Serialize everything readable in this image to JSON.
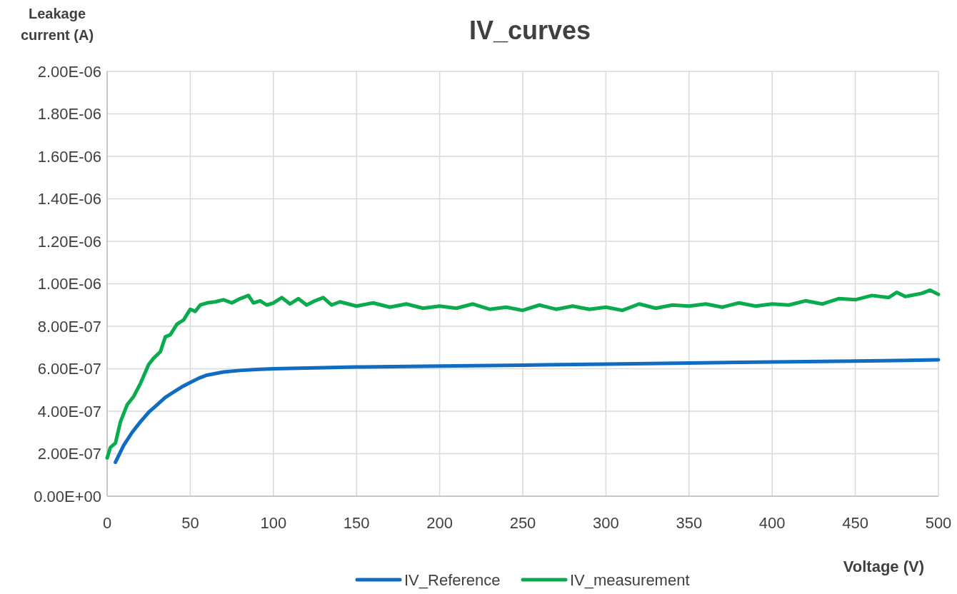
{
  "chart_data": {
    "type": "line",
    "title": "IV_curves",
    "xlabel": "Voltage (V)",
    "ylabel": "Leakage current (A)",
    "xlim": [
      0,
      500
    ],
    "xticks": [
      0,
      50,
      100,
      150,
      200,
      250,
      300,
      350,
      400,
      450,
      500
    ],
    "ylim": [
      0,
      2e-06
    ],
    "yticks": [
      {
        "value": 0,
        "label": "0.00E+00"
      },
      {
        "value": 2e-07,
        "label": "2.00E-07"
      },
      {
        "value": 4e-07,
        "label": "4.00E-07"
      },
      {
        "value": 6e-07,
        "label": "6.00E-07"
      },
      {
        "value": 8e-07,
        "label": "8.00E-07"
      },
      {
        "value": 1e-06,
        "label": "1.00E-06"
      },
      {
        "value": 1.2e-06,
        "label": "1.20E-06"
      },
      {
        "value": 1.4e-06,
        "label": "1.40E-06"
      },
      {
        "value": 1.6e-06,
        "label": "1.60E-06"
      },
      {
        "value": 1.8e-06,
        "label": "1.80E-06"
      },
      {
        "value": 2e-06,
        "label": "2.00E-06"
      }
    ],
    "grid": true,
    "legend": "bottom",
    "marker": "none",
    "line_style": "solid",
    "series": [
      {
        "name": "IV_Reference",
        "color": "#0f6cc0",
        "x": [
          5,
          10,
          15,
          20,
          25,
          30,
          35,
          40,
          45,
          50,
          55,
          60,
          70,
          80,
          90,
          100,
          125,
          150,
          200,
          250,
          300,
          350,
          400,
          450,
          500
        ],
        "values": [
          1.6e-07,
          2.4e-07,
          3e-07,
          3.5e-07,
          3.95e-07,
          4.3e-07,
          4.65e-07,
          4.9e-07,
          5.15e-07,
          5.35e-07,
          5.55e-07,
          5.7e-07,
          5.85e-07,
          5.92e-07,
          5.97e-07,
          6e-07,
          6.04e-07,
          6.08e-07,
          6.13e-07,
          6.17e-07,
          6.22e-07,
          6.27e-07,
          6.32e-07,
          6.36e-07,
          6.42e-07
        ]
      },
      {
        "name": "IV_measurement",
        "color": "#0aab4c",
        "x": [
          0,
          2,
          5,
          8,
          12,
          16,
          20,
          25,
          28,
          32,
          35,
          38,
          42,
          46,
          50,
          53,
          56,
          60,
          65,
          70,
          75,
          80,
          85,
          88,
          92,
          96,
          100,
          105,
          110,
          115,
          120,
          125,
          130,
          135,
          140,
          150,
          160,
          170,
          180,
          190,
          200,
          210,
          220,
          230,
          240,
          250,
          260,
          270,
          280,
          290,
          300,
          310,
          320,
          330,
          340,
          350,
          360,
          370,
          380,
          390,
          400,
          410,
          420,
          430,
          440,
          450,
          460,
          470,
          475,
          480,
          490,
          495,
          500
        ],
        "values": [
          1.8e-07,
          2.3e-07,
          2.5e-07,
          3.5e-07,
          4.3e-07,
          4.7e-07,
          5.3e-07,
          6.2e-07,
          6.5e-07,
          6.8e-07,
          7.5e-07,
          7.6e-07,
          8.1e-07,
          8.3e-07,
          8.8e-07,
          8.7e-07,
          9e-07,
          9.1e-07,
          9.15e-07,
          9.25e-07,
          9.1e-07,
          9.3e-07,
          9.45e-07,
          9.1e-07,
          9.2e-07,
          9e-07,
          9.1e-07,
          9.35e-07,
          9.05e-07,
          9.3e-07,
          9e-07,
          9.2e-07,
          9.35e-07,
          9e-07,
          9.15e-07,
          8.95e-07,
          9.1e-07,
          8.9e-07,
          9.05e-07,
          8.85e-07,
          8.95e-07,
          8.85e-07,
          9.05e-07,
          8.8e-07,
          8.9e-07,
          8.75e-07,
          9e-07,
          8.8e-07,
          8.95e-07,
          8.8e-07,
          8.9e-07,
          8.75e-07,
          9.05e-07,
          8.85e-07,
          9e-07,
          8.95e-07,
          9.05e-07,
          8.9e-07,
          9.1e-07,
          8.95e-07,
          9.05e-07,
          9e-07,
          9.2e-07,
          9.05e-07,
          9.3e-07,
          9.25e-07,
          9.45e-07,
          9.35e-07,
          9.6e-07,
          9.4e-07,
          9.55e-07,
          9.7e-07,
          9.5e-07
        ]
      }
    ]
  }
}
